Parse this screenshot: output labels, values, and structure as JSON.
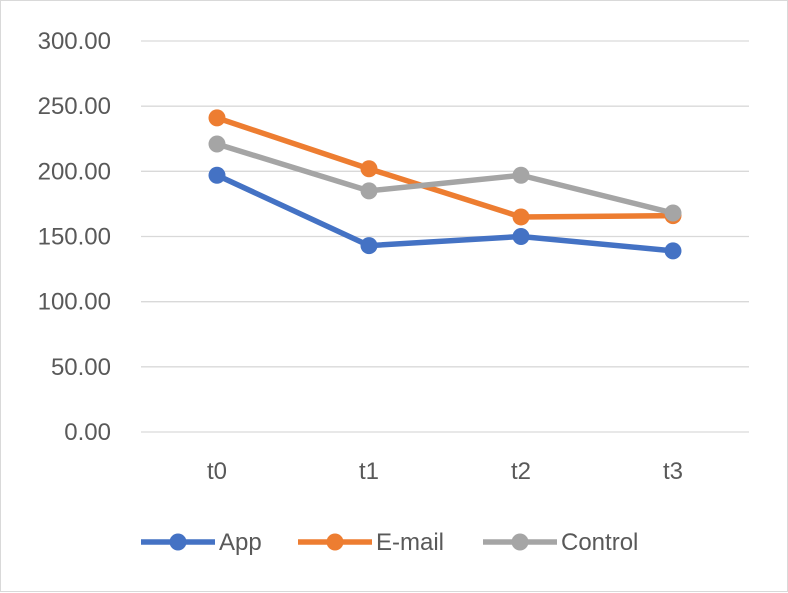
{
  "chart_data": {
    "type": "line",
    "title": "",
    "xlabel": "",
    "ylabel": "",
    "categories": [
      "t0",
      "t1",
      "t2",
      "t3"
    ],
    "ylim": [
      0,
      300
    ],
    "yticks": [
      0,
      50,
      100,
      150,
      200,
      250,
      300
    ],
    "ytick_labels": [
      "0.00",
      "50.00",
      "100.00",
      "150.00",
      "200.00",
      "250.00",
      "300.00"
    ],
    "grid": true,
    "legend_position": "bottom",
    "series": [
      {
        "name": "App",
        "color": "#4472C4",
        "values": [
          197,
          143,
          150,
          139
        ]
      },
      {
        "name": "E-mail",
        "color": "#ED7D31",
        "values": [
          241,
          202,
          165,
          166
        ]
      },
      {
        "name": "Control",
        "color": "#A5A5A5",
        "values": [
          221,
          185,
          197,
          168
        ]
      }
    ]
  }
}
